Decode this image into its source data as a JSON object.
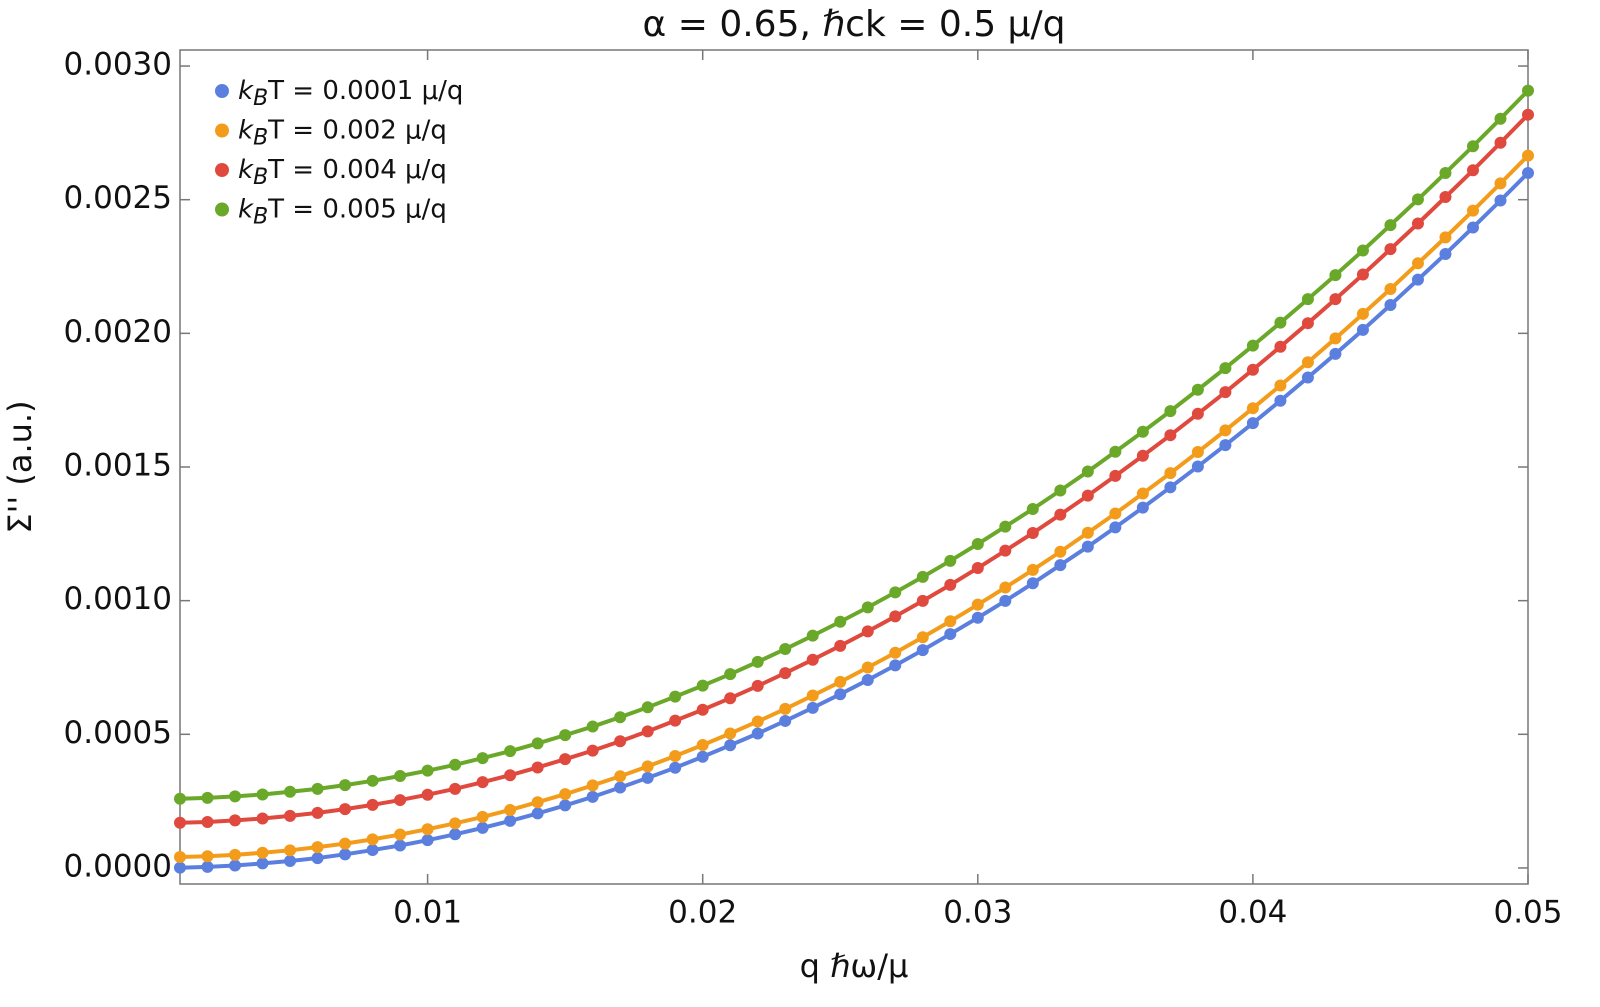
{
  "chart_data": {
    "type": "line",
    "title": "α = 0.65, ℏck = 0.5 μ/q",
    "xlabel": "q ℏω/μ",
    "ylabel": "Σ'' (a.u.)",
    "x": [
      0.001,
      0.002,
      0.003,
      0.004,
      0.005,
      0.006,
      0.007,
      0.008,
      0.009,
      0.01,
      0.011,
      0.012,
      0.013,
      0.014,
      0.015,
      0.016,
      0.017,
      0.018,
      0.019,
      0.02,
      0.021,
      0.022,
      0.023,
      0.024,
      0.025,
      0.026,
      0.027,
      0.028,
      0.029,
      0.03,
      0.031,
      0.032,
      0.033,
      0.034,
      0.035,
      0.036,
      0.037,
      0.038,
      0.039,
      0.04,
      0.041,
      0.042,
      0.043,
      0.044,
      0.045,
      0.046,
      0.047,
      0.048,
      0.049,
      0.05
    ],
    "series": [
      {
        "name": "kBT = 0.0001 μ/q",
        "color": "#5b7fde",
        "values": [
          1e-06,
          4e-06,
          9e-06,
          1.7e-05,
          2.6e-05,
          3.7e-05,
          5.1e-05,
          6.7e-05,
          8.4e-05,
          0.000104,
          0.000126,
          0.00015,
          0.000176,
          0.000204,
          0.000234,
          0.000266,
          0.000301,
          0.000337,
          0.000375,
          0.000416,
          0.000459,
          0.000503,
          0.00055,
          0.000599,
          0.00065,
          0.000703,
          0.000758,
          0.000815,
          0.000875,
          0.000936,
          0.000999,
          0.001065,
          0.001133,
          0.001202,
          0.001274,
          0.001348,
          0.001424,
          0.001502,
          0.001582,
          0.001664,
          0.001748,
          0.001835,
          0.001923,
          0.002013,
          0.002106,
          0.002201,
          0.002297,
          0.002396,
          0.002497,
          0.0026
        ]
      },
      {
        "name": "kBT = 0.002 μ/q",
        "color": "#f39c1b",
        "values": [
          4.1e-05,
          4.4e-05,
          4.9e-05,
          5.7e-05,
          6.6e-05,
          7.8e-05,
          9.1e-05,
          0.000107,
          0.000125,
          0.000145,
          0.000167,
          0.000191,
          0.000217,
          0.000246,
          0.000276,
          0.000309,
          0.000343,
          0.00038,
          0.000419,
          0.00046,
          0.000503,
          0.000548,
          0.000595,
          0.000645,
          0.000696,
          0.00075,
          0.000805,
          0.000863,
          0.000923,
          0.000985,
          0.001049,
          0.001115,
          0.001183,
          0.001254,
          0.001326,
          0.001401,
          0.001477,
          0.001556,
          0.001637,
          0.00172,
          0.001805,
          0.001892,
          0.001981,
          0.002073,
          0.002166,
          0.002262,
          0.002359,
          0.002459,
          0.002561,
          0.002665
        ]
      },
      {
        "name": "kBT = 0.004 μ/q",
        "color": "#e0493d",
        "values": [
          0.000169,
          0.000172,
          0.000178,
          0.000185,
          0.000195,
          0.000206,
          0.00022,
          0.000236,
          0.000254,
          0.000274,
          0.000296,
          0.000321,
          0.000347,
          0.000376,
          0.000407,
          0.000439,
          0.000474,
          0.000511,
          0.000551,
          0.000592,
          0.000635,
          0.000681,
          0.000729,
          0.000779,
          0.000831,
          0.000885,
          0.000941,
          0.000999,
          0.001059,
          0.001122,
          0.001187,
          0.001253,
          0.001322,
          0.001393,
          0.001467,
          0.001542,
          0.001619,
          0.001699,
          0.00178,
          0.001864,
          0.00195,
          0.002038,
          0.002128,
          0.00222,
          0.002315,
          0.002411,
          0.00251,
          0.00261,
          0.002713,
          0.002818
        ]
      },
      {
        "name": "kBT = 0.005 μ/q",
        "color": "#6aa829",
        "values": [
          0.000259,
          0.000262,
          0.000268,
          0.000275,
          0.000285,
          0.000296,
          0.00031,
          0.000326,
          0.000344,
          0.000364,
          0.000386,
          0.000411,
          0.000437,
          0.000466,
          0.000497,
          0.000529,
          0.000564,
          0.000601,
          0.000641,
          0.000682,
          0.000725,
          0.000771,
          0.000819,
          0.000869,
          0.000921,
          0.000975,
          0.001031,
          0.001089,
          0.001149,
          0.001212,
          0.001277,
          0.001343,
          0.001412,
          0.001483,
          0.001557,
          0.001632,
          0.001709,
          0.001789,
          0.00187,
          0.001954,
          0.00204,
          0.002128,
          0.002218,
          0.00231,
          0.002405,
          0.002501,
          0.0026,
          0.0027,
          0.002803,
          0.002908
        ]
      }
    ],
    "xlim": [
      0.001,
      0.05
    ],
    "ylim": [
      -6e-05,
      0.00306
    ],
    "xticks": [
      0.01,
      0.02,
      0.03,
      0.04,
      0.05
    ],
    "yticks": [
      {
        "value": 0,
        "label": "0.0000"
      },
      0.0005,
      {
        "value": 0.001,
        "label": "0.0010"
      },
      0.0015,
      {
        "value": 0.002,
        "label": "0.0020"
      },
      0.0025,
      {
        "value": 0.003,
        "label": "0.0030"
      }
    ],
    "legend": "upper left",
    "markers": true
  }
}
